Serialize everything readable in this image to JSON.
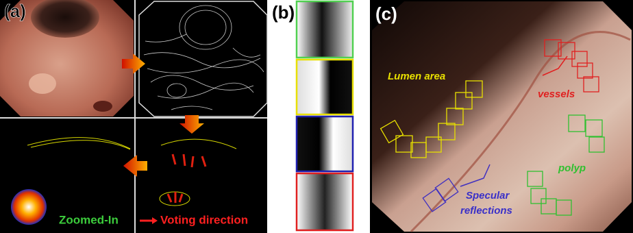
{
  "panel_a": {
    "label": "(a)",
    "zoom_text": "Zoomed-In",
    "voting_text": "Voting direction"
  },
  "panel_b": {
    "label": "(b)"
  },
  "panel_c": {
    "label": "(c)",
    "lumen": "Lumen area",
    "vessels": "vessels",
    "polyp": "polyp",
    "specular_line1": "Specular",
    "specular_line2": "reflections"
  }
}
